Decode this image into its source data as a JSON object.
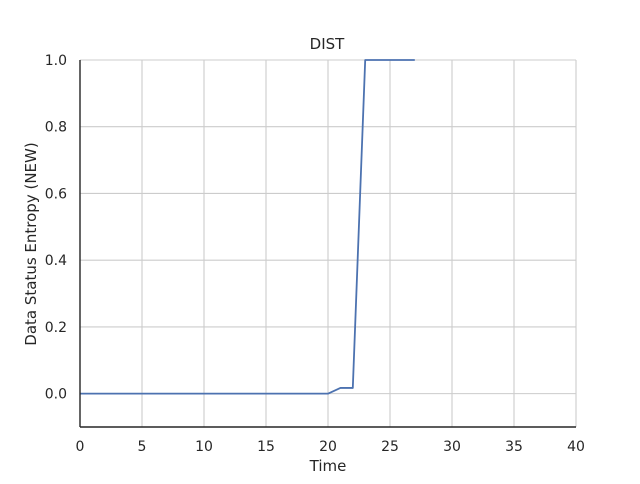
{
  "chart_data": {
    "type": "line",
    "title": "DIST",
    "xlabel": "Time",
    "ylabel": "Data Status Entropy (NEW)",
    "xlim": [
      0,
      40
    ],
    "ylim": [
      -0.1,
      1.0
    ],
    "xticks": [
      0,
      5,
      10,
      15,
      20,
      25,
      30,
      35,
      40
    ],
    "yticks": [
      0.0,
      0.2,
      0.4,
      0.6,
      0.8,
      1.0
    ],
    "xtick_labels": [
      "0",
      "5",
      "10",
      "15",
      "20",
      "25",
      "30",
      "35",
      "40"
    ],
    "ytick_labels": [
      "0.0",
      "0.2",
      "0.4",
      "0.6",
      "0.8",
      "1.0"
    ],
    "grid": true,
    "series": [
      {
        "color": "#4c72b0",
        "x": [
          0,
          1,
          2,
          3,
          4,
          5,
          6,
          7,
          8,
          9,
          10,
          11,
          12,
          13,
          14,
          15,
          16,
          17,
          18,
          19,
          20,
          21,
          22,
          23,
          24,
          25,
          26,
          27
        ],
        "y": [
          0,
          0,
          0,
          0,
          0,
          0,
          0,
          0,
          0,
          0,
          0,
          0,
          0,
          0,
          0,
          0,
          0,
          0,
          0,
          0,
          0,
          0.017,
          0.017,
          1.0,
          1.0,
          1.0,
          1.0,
          1.0
        ]
      }
    ]
  },
  "colors": {
    "grid": "#cccccc",
    "axis": "#262626",
    "line": "#4c72b0"
  }
}
